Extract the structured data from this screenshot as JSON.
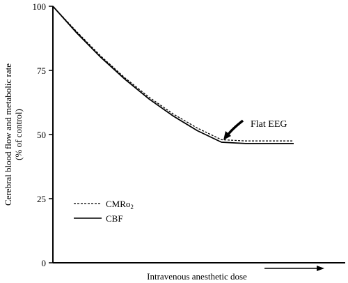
{
  "chart_data": {
    "type": "line",
    "xlabel": "Intravenous anesthetic dose",
    "ylabel_line1": "Cerebral blood flow and metabolic rate",
    "ylabel_line2": "(% of control)",
    "ylim": [
      0,
      100
    ],
    "yticks": [
      0,
      25,
      50,
      75,
      100
    ],
    "ytick_labels": [
      "0",
      "25",
      "50",
      "75",
      "100"
    ],
    "grid": false,
    "legend_position": "lower-left",
    "annotation": "Flat EEG",
    "series": [
      {
        "name": "CMRo2",
        "legend_label": "CMRo",
        "legend_subscript": "2",
        "style": "dashed",
        "color": "#000000",
        "points": [
          [
            0,
            100
          ],
          [
            0.1,
            90
          ],
          [
            0.2,
            80.5
          ],
          [
            0.3,
            72
          ],
          [
            0.4,
            64.5
          ],
          [
            0.5,
            58
          ],
          [
            0.6,
            52.5
          ],
          [
            0.7,
            48
          ],
          [
            0.8,
            47.5
          ],
          [
            1.0,
            47.5
          ]
        ]
      },
      {
        "name": "CBF",
        "legend_label": "CBF",
        "legend_subscript": "",
        "style": "solid",
        "color": "#000000",
        "points": [
          [
            0,
            100
          ],
          [
            0.1,
            89.5
          ],
          [
            0.2,
            80
          ],
          [
            0.3,
            71.5
          ],
          [
            0.4,
            63.8
          ],
          [
            0.5,
            57.2
          ],
          [
            0.6,
            51.5
          ],
          [
            0.7,
            47
          ],
          [
            0.8,
            46.5
          ],
          [
            1.0,
            46.5
          ]
        ]
      }
    ]
  }
}
